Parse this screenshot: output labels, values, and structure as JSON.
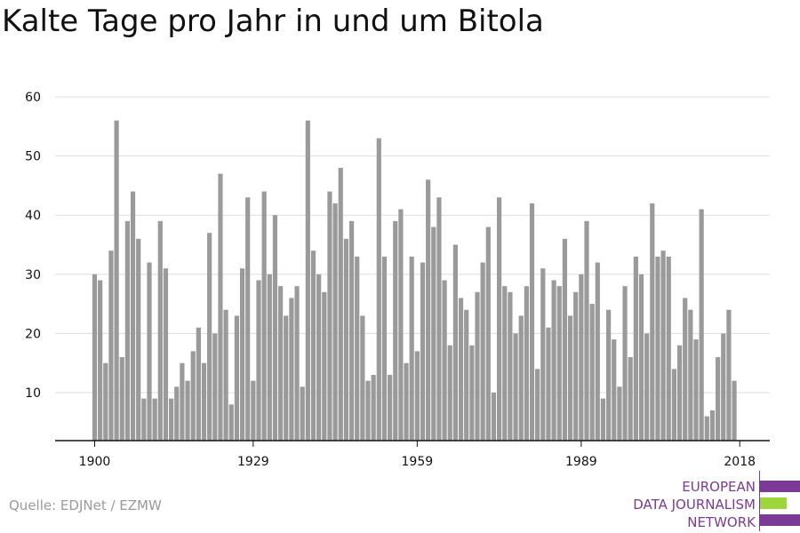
{
  "title": "Kalte Tage pro Jahr in und um Bitola",
  "source": "Quelle: EDJNet / EZMW",
  "logo": {
    "line1": "EUROPEAN",
    "line2": "DATA JOURNALISM",
    "line3": "NETWORK",
    "purple": "#7b3a96",
    "green": "#9dd53a"
  },
  "colors": {
    "bar": "#9a9a9a",
    "grid": "#dddddd",
    "axis": "#111111",
    "text": "#111111"
  },
  "chart_data": {
    "type": "bar",
    "title": "Kalte Tage pro Jahr in und um Bitola",
    "xlabel": "",
    "ylabel": "",
    "x_start": 1900,
    "x_ticks": [
      1900,
      1929,
      1959,
      1989,
      2018
    ],
    "y_ticks": [
      10,
      20,
      30,
      40,
      50,
      60
    ],
    "ylim": [
      2,
      60
    ],
    "grid": true,
    "values": [
      30,
      29,
      15,
      34,
      56,
      16,
      39,
      44,
      36,
      9,
      32,
      9,
      39,
      31,
      9,
      11,
      15,
      12,
      17,
      21,
      15,
      37,
      20,
      47,
      24,
      8,
      23,
      31,
      43,
      12,
      29,
      44,
      30,
      40,
      28,
      23,
      26,
      28,
      11,
      56,
      34,
      30,
      27,
      44,
      42,
      48,
      36,
      39,
      33,
      23,
      12,
      13,
      53,
      33,
      13,
      39,
      41,
      15,
      33,
      17,
      32,
      46,
      38,
      43,
      29,
      18,
      35,
      26,
      24,
      18,
      27,
      32,
      38,
      10,
      43,
      28,
      27,
      20,
      23,
      28,
      42,
      14,
      31,
      21,
      29,
      28,
      36,
      23,
      27,
      30,
      39,
      25,
      32,
      9,
      24,
      19,
      11,
      28,
      16,
      33,
      30,
      20,
      42,
      33,
      34,
      33,
      14,
      18,
      26,
      24,
      19,
      41,
      6,
      7,
      16,
      20,
      24,
      12
    ]
  }
}
